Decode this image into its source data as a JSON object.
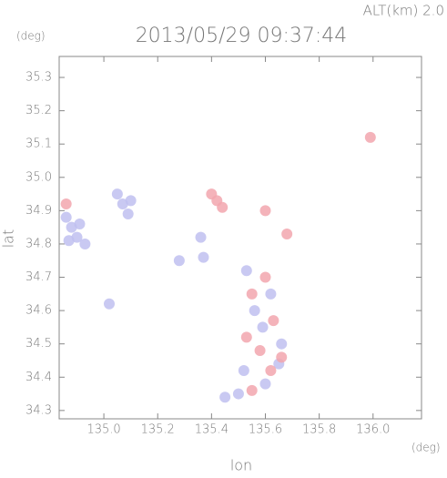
{
  "chart_data": {
    "type": "scatter",
    "title": "2013/05/29 09:37:44",
    "corner_label": "ALT(km) 2.0",
    "y_unit": "(deg)",
    "x_unit": "(deg)",
    "x_label": "lon",
    "y_label": "lat",
    "xlim": [
      134.834,
      136.18
    ],
    "ylim": [
      34.275,
      35.363
    ],
    "xticks": [
      {
        "value": 135,
        "label": "135.0"
      },
      135.2,
      135.4,
      135.6,
      135.8,
      {
        "value": 136,
        "label": "136.0"
      }
    ],
    "yticks": [
      34.3,
      34.4,
      34.5,
      34.6,
      34.7,
      34.8,
      34.9,
      {
        "value": 35,
        "label": "35.0"
      },
      35.1,
      35.2,
      35.3
    ],
    "series": [
      {
        "color": "#c0c0f0",
        "x": [
          134.86,
          134.88,
          134.9,
          134.93,
          134.87,
          134.91,
          135.05,
          135.07,
          135.09,
          135.1,
          135.02,
          135.28,
          135.36,
          135.37,
          135.53,
          135.56,
          135.59,
          135.62,
          135.66,
          135.52,
          135.6,
          135.65,
          135.5,
          135.45
        ],
        "y": [
          34.88,
          34.85,
          34.82,
          34.8,
          34.81,
          34.86,
          34.95,
          34.92,
          34.89,
          34.93,
          34.62,
          34.75,
          34.82,
          34.76,
          34.72,
          34.6,
          34.55,
          34.65,
          34.5,
          34.42,
          34.38,
          34.44,
          34.35,
          34.34
        ]
      },
      {
        "color": "#f2a6ae",
        "x": [
          135.4,
          135.42,
          135.44,
          135.99,
          134.86,
          135.55,
          135.6,
          135.63,
          135.58,
          135.62,
          135.66,
          135.55,
          135.68,
          135.6,
          135.53
        ],
        "y": [
          34.95,
          34.93,
          34.91,
          35.12,
          34.92,
          34.65,
          34.7,
          34.57,
          34.48,
          34.42,
          34.46,
          34.36,
          34.83,
          34.9,
          34.52
        ]
      }
    ]
  }
}
